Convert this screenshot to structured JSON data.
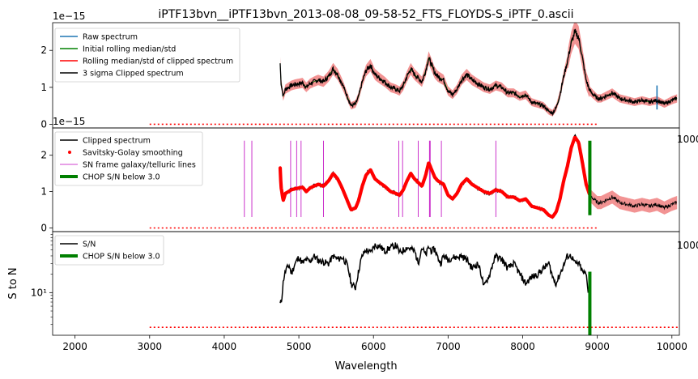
{
  "chart_data": {
    "type": "line",
    "title": "iPTF13bvn__iPTF13bvn_2013-08-08_09-58-52_FTS_FLOYDS-S_iPTF_0.ascii",
    "xlabel": "Wavelength",
    "xlim": [
      1700,
      10100
    ],
    "xticks": [
      2000,
      3000,
      4000,
      5000,
      6000,
      7000,
      8000,
      9000,
      10000
    ],
    "panels": [
      {
        "id": "top",
        "ylabel": "",
        "offset_text": "1e−15",
        "ylim": [
          -0.1,
          2.75
        ],
        "yticks": [
          0,
          1,
          2
        ],
        "legend_position": "upper-left",
        "series": [
          {
            "name": "Raw spectrum",
            "color": "#1f77b4",
            "type": "line"
          },
          {
            "name": "Initial rolling median/std",
            "color": "#008000",
            "type": "line"
          },
          {
            "name": "Rolling median/std of clipped spectrum",
            "color": "#ff0000",
            "type": "line"
          },
          {
            "name": "3 sigma Clipped spectrum",
            "color": "#000000",
            "type": "line"
          }
        ],
        "spectrum": {
          "x": [
            4750,
            4760,
            4790,
            4820,
            4860,
            4900,
            4950,
            5000,
            5050,
            5100,
            5150,
            5200,
            5260,
            5330,
            5400,
            5460,
            5520,
            5580,
            5640,
            5700,
            5760,
            5800,
            5850,
            5900,
            5960,
            6020,
            6080,
            6150,
            6230,
            6300,
            6350,
            6400,
            6450,
            6500,
            6550,
            6600,
            6650,
            6700,
            6740,
            6780,
            6820,
            6860,
            6900,
            6940,
            7000,
            7060,
            7120,
            7180,
            7250,
            7320,
            7400,
            7480,
            7560,
            7640,
            7720,
            7800,
            7880,
            7960,
            8040,
            8120,
            8200,
            8280,
            8350,
            8400,
            8450,
            8500,
            8550,
            8600,
            8650,
            8700,
            8750,
            8800,
            8850,
            8900,
            8950,
            9000,
            9050,
            9100,
            9150,
            9200,
            9300,
            9400,
            9500,
            9600,
            9700,
            9800,
            9900,
            10000,
            10070
          ],
          "y": [
            1.65,
            1.15,
            0.75,
            0.95,
            1.0,
            1.05,
            1.08,
            1.1,
            1.12,
            1.0,
            1.1,
            1.15,
            1.2,
            1.15,
            1.3,
            1.5,
            1.35,
            1.1,
            0.8,
            0.5,
            0.55,
            0.75,
            1.15,
            1.45,
            1.6,
            1.35,
            1.25,
            1.15,
            1.0,
            0.95,
            0.9,
            1.05,
            1.3,
            1.5,
            1.35,
            1.25,
            1.15,
            1.45,
            1.8,
            1.6,
            1.4,
            1.3,
            1.25,
            1.2,
            0.9,
            0.8,
            0.95,
            1.2,
            1.35,
            1.2,
            1.1,
            1.0,
            0.95,
            1.05,
            1.0,
            0.85,
            0.85,
            0.75,
            0.8,
            0.6,
            0.55,
            0.5,
            0.35,
            0.3,
            0.45,
            0.8,
            1.3,
            1.7,
            2.2,
            2.5,
            2.35,
            1.8,
            1.2,
            0.9,
            0.8,
            0.7,
            0.7,
            0.75,
            0.8,
            0.85,
            0.7,
            0.65,
            0.6,
            0.65,
            0.6,
            0.65,
            0.55,
            0.65,
            0.7
          ],
          "raw_spike": {
            "x": 9800,
            "y": [
              0.4,
              1.05
            ]
          }
        },
        "threshold_line": {
          "x": [
            3000,
            9000
          ],
          "y": 0,
          "color": "#ff0000",
          "style": "dotted"
        }
      },
      {
        "id": "middle",
        "ylabel": "",
        "offset_text": "1e−15",
        "ylim": [
          -0.1,
          2.75
        ],
        "yticks": [
          0,
          1,
          2
        ],
        "legend_position": "upper-left",
        "series": [
          {
            "name": "Clipped spectrum",
            "color": "#000000",
            "type": "line"
          },
          {
            "name": "Savitsky-Golay smoothing",
            "color": "#ff0000",
            "type": "marker"
          },
          {
            "name": "SN frame galaxy/telluric lines",
            "color": "#bf00bf",
            "type": "vline"
          },
          {
            "name": "CHOP S/N below 3.0",
            "color": "#008000",
            "type": "thick-line"
          }
        ],
        "telluric_lines": [
          4270,
          4370,
          4890,
          4970,
          5030,
          5330,
          6340,
          6390,
          6600,
          6750,
          6760,
          6910,
          7640
        ],
        "telluric_range": [
          0.3,
          2.4
        ],
        "smoothing_range": [
          4750,
          8900
        ],
        "chop": {
          "x": 8900,
          "y": [
            0.35,
            2.4
          ]
        },
        "threshold_line": {
          "x": [
            3000,
            9000
          ],
          "y": 0,
          "color": "#ff0000",
          "style": "dotted"
        }
      },
      {
        "id": "bottom",
        "ylabel": "S to N",
        "offset_text": "",
        "yscale": "log",
        "ylim": [
          2.0,
          100
        ],
        "yticks": [
          10
        ],
        "ytick_labels": [
          "10¹"
        ],
        "legend_position": "upper-left",
        "series": [
          {
            "name": "S/N",
            "color": "#000000",
            "type": "line"
          },
          {
            "name": "CHOP S/N below 3.0",
            "color": "#008000",
            "type": "thick-line"
          }
        ],
        "sn": {
          "x": [
            4750,
            4770,
            4800,
            4830,
            4870,
            4900,
            4950,
            5000,
            5050,
            5100,
            5150,
            5200,
            5260,
            5330,
            5400,
            5460,
            5520,
            5580,
            5640,
            5700,
            5760,
            5800,
            5850,
            5900,
            5960,
            6020,
            6080,
            6150,
            6230,
            6300,
            6350,
            6400,
            6450,
            6500,
            6550,
            6600,
            6650,
            6700,
            6740,
            6780,
            6820,
            6860,
            6900,
            6940,
            7000,
            7060,
            7120,
            7180,
            7250,
            7320,
            7400,
            7480,
            7560,
            7640,
            7720,
            7800,
            7880,
            7960,
            8040,
            8120,
            8200,
            8280,
            8350,
            8400,
            8450,
            8500,
            8550,
            8600,
            8650,
            8700,
            8750,
            8800,
            8850,
            8880
          ],
          "y": [
            6.5,
            7.5,
            18,
            24,
            28,
            20,
            30,
            38,
            30,
            35,
            32,
            40,
            34,
            32,
            30,
            40,
            35,
            38,
            30,
            14,
            12,
            22,
            40,
            50,
            45,
            60,
            58,
            48,
            55,
            60,
            45,
            50,
            55,
            52,
            48,
            30,
            55,
            40,
            56,
            48,
            52,
            38,
            30,
            40,
            35,
            38,
            38,
            40,
            35,
            25,
            30,
            12,
            20,
            40,
            35,
            25,
            30,
            20,
            14,
            18,
            20,
            25,
            30,
            18,
            14,
            20,
            28,
            40,
            40,
            30,
            30,
            22,
            20,
            10
          ]
        },
        "chop": {
          "x": 8900,
          "y": [
            1.0,
            22
          ]
        },
        "threshold_line": {
          "x": [
            3000,
            10100
          ],
          "y": 2.7,
          "color": "#ff0000",
          "style": "dotted"
        }
      }
    ]
  },
  "spill_labels": [
    "1000",
    "1000",
    "1000"
  ],
  "colors": {
    "black": "#000000",
    "red": "#ff0000",
    "salmon": "#f08080",
    "green": "#008000",
    "blue": "#1f77b4",
    "magenta": "#bf00bf"
  }
}
